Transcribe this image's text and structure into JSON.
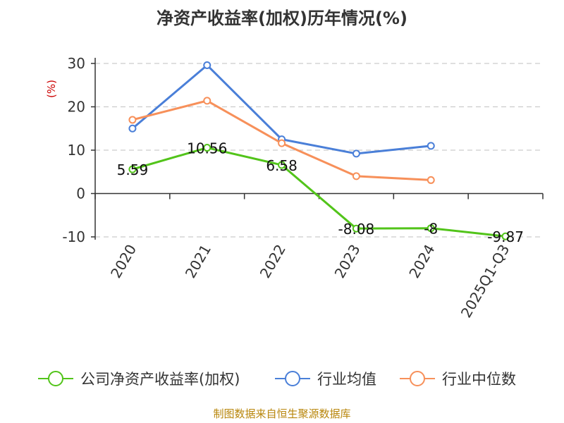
{
  "chart_data": {
    "type": "line",
    "title": "净资产收益率(加权)历年情况(%)",
    "ylabel": "(%)",
    "categories": [
      "2020",
      "2021",
      "2022",
      "2023",
      "2024",
      "2025Q1-Q3"
    ],
    "yticks": [
      30,
      20,
      10,
      0,
      -10
    ],
    "ylim": [
      -10,
      30
    ],
    "series": [
      {
        "name": "公司净资产收益率(加权)",
        "color": "#52c41a",
        "values": [
          5.59,
          10.56,
          6.58,
          -8.08,
          -8,
          -9.87
        ],
        "labels": [
          "5.59",
          "10.56",
          "6.58",
          "-8.08",
          "-8",
          "-9.87"
        ]
      },
      {
        "name": "行业均值",
        "color": "#4a7fd8",
        "values": [
          15,
          29.6,
          12.5,
          9.2,
          11,
          null
        ]
      },
      {
        "name": "行业中位数",
        "color": "#f7905a",
        "values": [
          17,
          21.4,
          11.6,
          4,
          3.1,
          null
        ]
      }
    ],
    "source": "制图数据来自恒生聚源数据库"
  }
}
